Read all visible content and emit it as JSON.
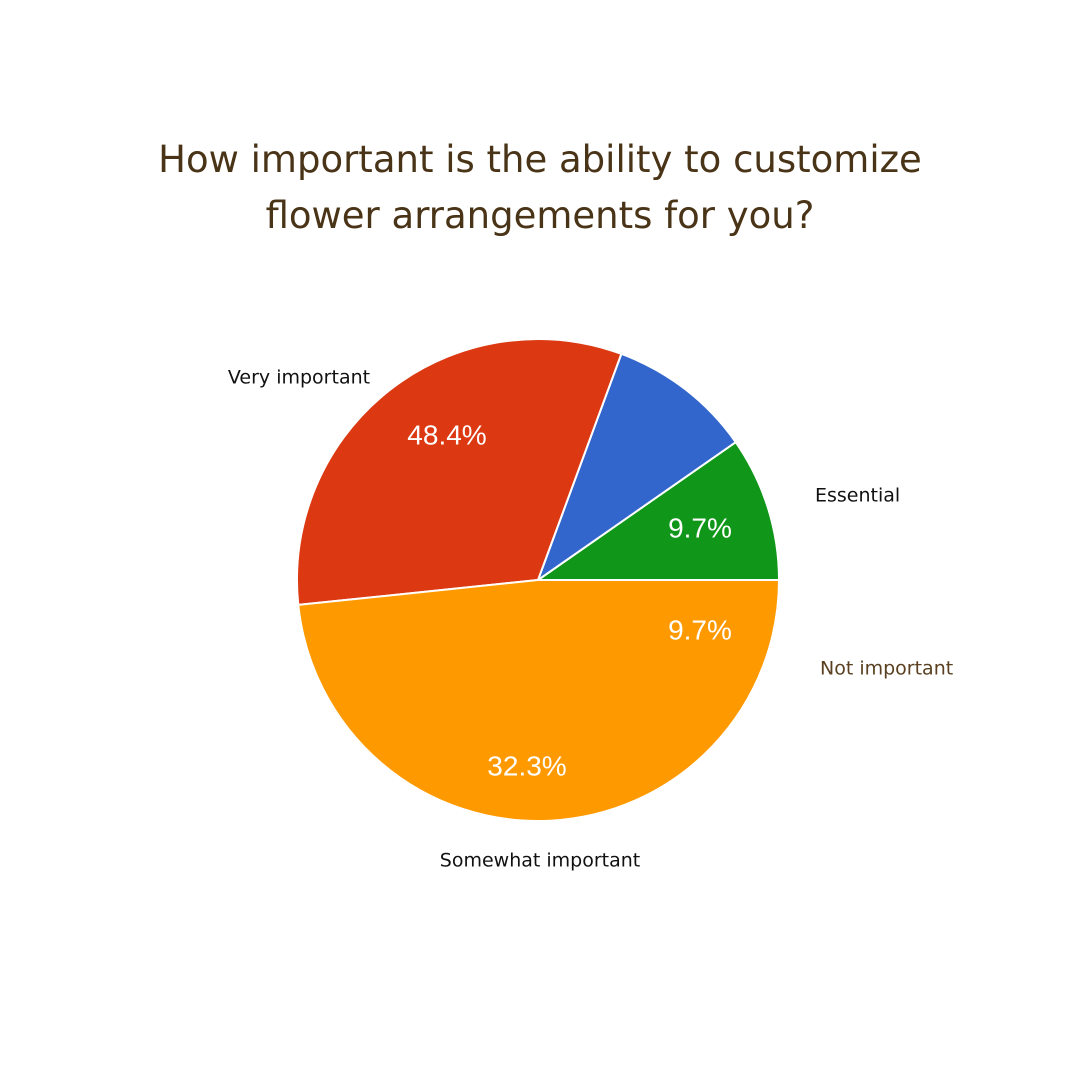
{
  "chart_data": {
    "type": "pie",
    "title_lines": [
      "How important is the ability to customize",
      "flower arrangements for you?"
    ],
    "slices": [
      {
        "label": "Essential",
        "value": 9.7,
        "value_label": "9.7%",
        "color": "#109618",
        "label_color": "#111111"
      },
      {
        "label": "Not important",
        "value": 9.7,
        "value_label": "9.7%",
        "color": "#3366cc",
        "label_color": "#5a4020"
      },
      {
        "label": "Somewhat important",
        "value": 32.3,
        "value_label": "32.3%",
        "color": "#dc3912",
        "label_color": "#111111"
      },
      {
        "label": "Very important",
        "value": 48.4,
        "value_label": "48.4%",
        "color": "#ff9900",
        "label_color": "#111111"
      }
    ],
    "legend": "none",
    "colors": {
      "title": "#4a3418",
      "slice_border": "#ffffff",
      "percent_text": "#ffffff"
    }
  }
}
